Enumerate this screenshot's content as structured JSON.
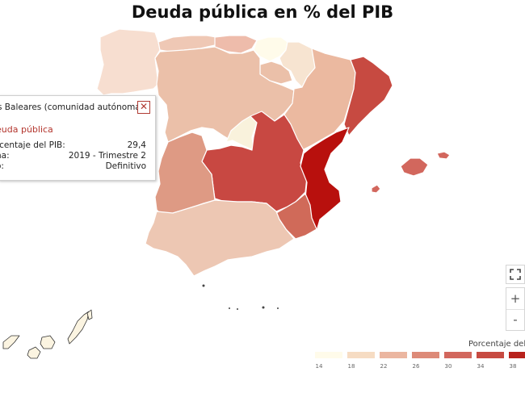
{
  "title": "Deuda pública en % del PIB",
  "tooltip": {
    "region": "s Baleares (comunidad autónoma)",
    "close_glyph": "✕",
    "metric": "euda pública",
    "rows": [
      {
        "label": "rcentaje del PIB:",
        "value": "29,4"
      },
      {
        "label": "ha:",
        "value": "2019 - Trimestre 2"
      },
      {
        "label": "o:",
        "value": "Definitivo"
      }
    ]
  },
  "controls": {
    "fullscreen_icon": "fullscreen-icon",
    "zoom_in": "+",
    "zoom_out": "-"
  },
  "legend": {
    "title": "Porcentaje del",
    "colors": [
      "#fffbea",
      "#f6dcc3",
      "#ebb6a0",
      "#dd8a78",
      "#d2675d",
      "#c74a41",
      "#b8221c"
    ],
    "labels": [
      "14",
      "18",
      "22",
      "26",
      "30",
      "34",
      "38"
    ]
  },
  "palette": {
    "galicia": "#f7ded0",
    "asturias": "#efc8b5",
    "cantabria": "#eebcab",
    "pais_vasco": "#fffbea",
    "navarra": "#f7e4d1",
    "castilla_leon": "#ebc0a9",
    "la_rioja": "#ebc0a9",
    "aragon": "#ebb9a0",
    "cataluna": "#c74a41",
    "madrid": "#f9f2dc",
    "castilla_la_mancha": "#c84842",
    "extremadura": "#de9a84",
    "valencia": "#b8100d",
    "murcia": "#d06a59",
    "andalucia": "#edc7b3",
    "baleares": "#d2675d",
    "canarias": "#fbf4e1"
  }
}
